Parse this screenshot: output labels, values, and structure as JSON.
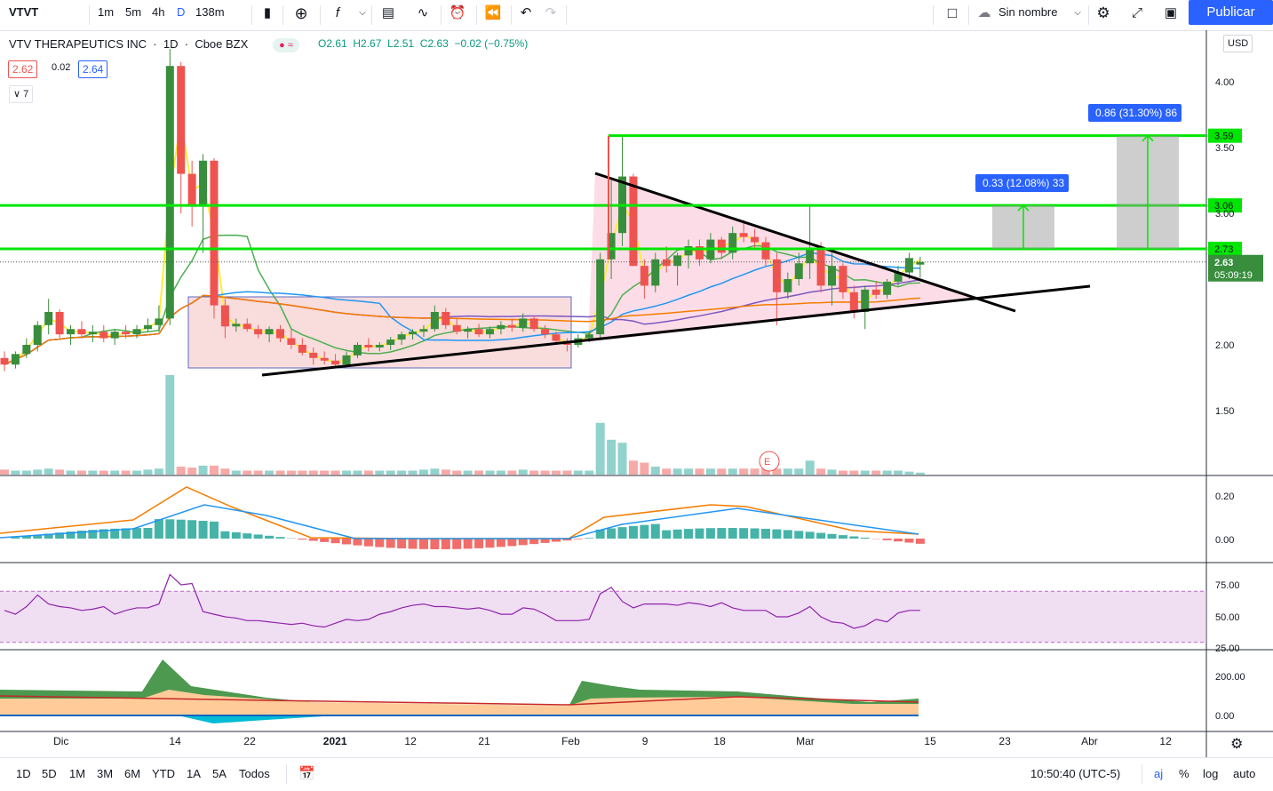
{
  "toolbar": {
    "symbol": "VTVT",
    "intervals": [
      "1m",
      "5m",
      "4h",
      "D",
      "138m"
    ],
    "active_interval": "D",
    "layout_name": "Sin nombre",
    "publish_label": "Publicar"
  },
  "legend": {
    "name": "VTV THERAPEUTICS INC",
    "interval": "1D",
    "exchange": "Cboe BZX",
    "o": "O2.61",
    "h": "H2.67",
    "l": "L2.51",
    "c": "C2.63",
    "chg": "−0.02 (−0.75%)",
    "bid": "2.62",
    "spread": "0.02",
    "ask": "2.64",
    "indicators_count": "7"
  },
  "price_axis": {
    "currency": "USD",
    "ticks": [
      "4.00",
      "3.50",
      "3.00",
      "2.00",
      "1.50"
    ],
    "last_price": "2.63",
    "countdown": "05:09:19"
  },
  "levels": [
    "3.59",
    "3.06",
    "2.73"
  ],
  "measure_labels": [
    "0.33 (12.08%) 33",
    "0.86 (31.30%) 86"
  ],
  "earnings_marker": "E",
  "macd_axis": [
    "0.20",
    "0.00"
  ],
  "rsi_axis": [
    "75.00",
    "50.00",
    "25.00"
  ],
  "vol_axis": [
    "200.00",
    "0.00"
  ],
  "time_axis": [
    "Dic",
    "14",
    "22",
    "2021",
    "12",
    "21",
    "Feb",
    "9",
    "18",
    "Mar",
    "15",
    "23",
    "Abr",
    "12"
  ],
  "bottombar": {
    "ranges": [
      "1D",
      "5D",
      "1M",
      "3M",
      "6M",
      "YTD",
      "1A",
      "5A",
      "Todos"
    ],
    "clock": "10:50:40 (UTC-5)",
    "aj": "aj",
    "pct": "%",
    "log": "log",
    "auto": "auto"
  },
  "colors": {
    "up": "#26a69a",
    "down": "#ef5350",
    "level": "#00e600",
    "accent": "#2962ff"
  },
  "chart_data": {
    "type": "candlestick",
    "title": "VTV THERAPEUTICS INC · 1D · Cboe BZX",
    "ylim": [
      1.0,
      4.3
    ],
    "ohlc": [
      [
        1.9,
        1.95,
        1.8,
        1.85
      ],
      [
        1.85,
        1.95,
        1.82,
        1.93
      ],
      [
        1.93,
        2.05,
        1.9,
        2.0
      ],
      [
        2.0,
        2.18,
        1.95,
        2.15
      ],
      [
        2.15,
        2.35,
        2.08,
        2.25
      ],
      [
        2.25,
        2.27,
        2.05,
        2.08
      ],
      [
        2.08,
        2.15,
        2.0,
        2.12
      ],
      [
        2.12,
        2.18,
        2.05,
        2.08
      ],
      [
        2.08,
        2.15,
        2.02,
        2.1
      ],
      [
        2.1,
        2.15,
        2.02,
        2.05
      ],
      [
        2.05,
        2.12,
        2.0,
        2.1
      ],
      [
        2.1,
        2.15,
        2.05,
        2.08
      ],
      [
        2.08,
        2.15,
        2.05,
        2.12
      ],
      [
        2.12,
        2.2,
        2.1,
        2.15
      ],
      [
        2.15,
        2.3,
        2.1,
        2.2
      ],
      [
        2.2,
        4.25,
        2.15,
        4.12
      ],
      [
        4.12,
        4.15,
        3.0,
        3.3
      ],
      [
        3.3,
        3.4,
        2.9,
        3.05
      ],
      [
        3.05,
        3.45,
        2.7,
        3.4
      ],
      [
        3.4,
        3.42,
        2.2,
        2.3
      ],
      [
        2.3,
        2.35,
        2.05,
        2.14
      ],
      [
        2.14,
        2.2,
        2.1,
        2.16
      ],
      [
        2.16,
        2.2,
        2.1,
        2.12
      ],
      [
        2.12,
        2.15,
        2.05,
        2.08
      ],
      [
        2.08,
        2.14,
        2.02,
        2.12
      ],
      [
        2.12,
        2.15,
        2.02,
        2.05
      ],
      [
        2.05,
        2.12,
        1.97,
        2.0
      ],
      [
        2.0,
        2.05,
        1.92,
        1.94
      ],
      [
        1.94,
        1.98,
        1.85,
        1.9
      ],
      [
        1.9,
        1.95,
        1.85,
        1.88
      ],
      [
        1.88,
        1.93,
        1.83,
        1.85
      ],
      [
        1.85,
        1.95,
        1.83,
        1.92
      ],
      [
        1.92,
        2.02,
        1.9,
        2.0
      ],
      [
        2.0,
        2.05,
        1.95,
        1.98
      ],
      [
        1.98,
        2.02,
        1.95,
        2.0
      ],
      [
        2.0,
        2.06,
        1.96,
        2.04
      ],
      [
        2.04,
        2.1,
        2.0,
        2.08
      ],
      [
        2.08,
        2.12,
        2.04,
        2.1
      ],
      [
        2.1,
        2.15,
        2.06,
        2.12
      ],
      [
        2.12,
        2.3,
        2.1,
        2.25
      ],
      [
        2.25,
        2.28,
        2.12,
        2.15
      ],
      [
        2.15,
        2.2,
        2.08,
        2.1
      ],
      [
        2.1,
        2.14,
        2.05,
        2.12
      ],
      [
        2.12,
        2.16,
        2.06,
        2.08
      ],
      [
        2.08,
        2.14,
        2.05,
        2.12
      ],
      [
        2.12,
        2.18,
        2.08,
        2.15
      ],
      [
        2.15,
        2.2,
        2.1,
        2.13
      ],
      [
        2.13,
        2.24,
        2.1,
        2.2
      ],
      [
        2.2,
        2.22,
        2.1,
        2.12
      ],
      [
        2.12,
        2.15,
        2.05,
        2.08
      ],
      [
        2.08,
        2.1,
        2.0,
        2.03
      ],
      [
        2.03,
        2.05,
        1.95,
        2.0
      ],
      [
        2.0,
        2.08,
        1.98,
        2.05
      ],
      [
        2.05,
        2.1,
        2.02,
        2.08
      ],
      [
        2.08,
        2.7,
        2.05,
        2.65
      ],
      [
        2.65,
        3.25,
        2.5,
        2.85
      ],
      [
        2.85,
        3.6,
        2.75,
        3.28
      ],
      [
        3.28,
        3.3,
        2.6,
        2.6
      ],
      [
        2.6,
        2.65,
        2.35,
        2.45
      ],
      [
        2.45,
        2.7,
        2.4,
        2.65
      ],
      [
        2.65,
        2.75,
        2.55,
        2.6
      ],
      [
        2.6,
        2.7,
        2.45,
        2.68
      ],
      [
        2.68,
        2.8,
        2.58,
        2.75
      ],
      [
        2.75,
        2.8,
        2.6,
        2.65
      ],
      [
        2.65,
        2.85,
        2.62,
        2.8
      ],
      [
        2.8,
        2.82,
        2.65,
        2.7
      ],
      [
        2.7,
        2.9,
        2.65,
        2.85
      ],
      [
        2.85,
        2.95,
        2.78,
        2.82
      ],
      [
        2.82,
        2.88,
        2.72,
        2.78
      ],
      [
        2.78,
        2.82,
        2.6,
        2.65
      ],
      [
        2.65,
        2.7,
        2.15,
        2.4
      ],
      [
        2.4,
        2.55,
        2.35,
        2.5
      ],
      [
        2.5,
        2.7,
        2.45,
        2.62
      ],
      [
        2.62,
        3.05,
        2.5,
        2.72
      ],
      [
        2.72,
        2.78,
        2.4,
        2.45
      ],
      [
        2.45,
        2.7,
        2.3,
        2.6
      ],
      [
        2.6,
        2.62,
        2.35,
        2.4
      ],
      [
        2.4,
        2.45,
        2.2,
        2.25
      ],
      [
        2.25,
        2.45,
        2.12,
        2.42
      ],
      [
        2.42,
        2.48,
        2.35,
        2.38
      ],
      [
        2.38,
        2.5,
        2.35,
        2.48
      ],
      [
        2.48,
        2.6,
        2.45,
        2.55
      ],
      [
        2.55,
        2.7,
        2.5,
        2.66
      ],
      [
        2.61,
        2.67,
        2.51,
        2.63
      ]
    ],
    "volume": [
      5,
      4,
      4,
      5,
      6,
      5,
      4,
      4,
      4,
      4,
      4,
      4,
      4,
      5,
      6,
      100,
      8,
      7,
      9,
      9,
      6,
      4,
      4,
      4,
      4,
      4,
      4,
      4,
      4,
      4,
      4,
      4,
      4,
      4,
      4,
      4,
      4,
      4,
      5,
      6,
      5,
      4,
      4,
      4,
      4,
      4,
      4,
      5,
      4,
      4,
      4,
      4,
      4,
      4,
      52,
      35,
      32,
      14,
      12,
      8,
      6,
      6,
      6,
      6,
      6,
      6,
      6,
      6,
      6,
      6,
      6,
      6,
      6,
      14,
      6,
      5,
      4,
      4,
      4,
      4,
      4,
      4,
      3,
      2
    ],
    "rsi": [
      55,
      52,
      58,
      67,
      60,
      58,
      57,
      55,
      56,
      58,
      52,
      55,
      57,
      57,
      60,
      83,
      75,
      76,
      54,
      52,
      50,
      49,
      47,
      47,
      46,
      45,
      44,
      45,
      43,
      42,
      45,
      48,
      47,
      48,
      52,
      54,
      57,
      59,
      60,
      58,
      58,
      57,
      56,
      57,
      55,
      52,
      52,
      57,
      56,
      52,
      47,
      47,
      47,
      48,
      68,
      73,
      62,
      57,
      60,
      60,
      60,
      59,
      61,
      60,
      58,
      61,
      57,
      55,
      55,
      55,
      50,
      50,
      53,
      58,
      50,
      46,
      45,
      41,
      43,
      48,
      46,
      53,
      55,
      55
    ],
    "key_levels": [
      3.59,
      3.06,
      2.73
    ],
    "measure_ranges": [
      {
        "from": 2.73,
        "to": 3.06,
        "label": "0.33 (12.08%) 33"
      },
      {
        "from": 2.73,
        "to": 3.59,
        "label": "0.86 (31.30%) 86"
      }
    ]
  }
}
